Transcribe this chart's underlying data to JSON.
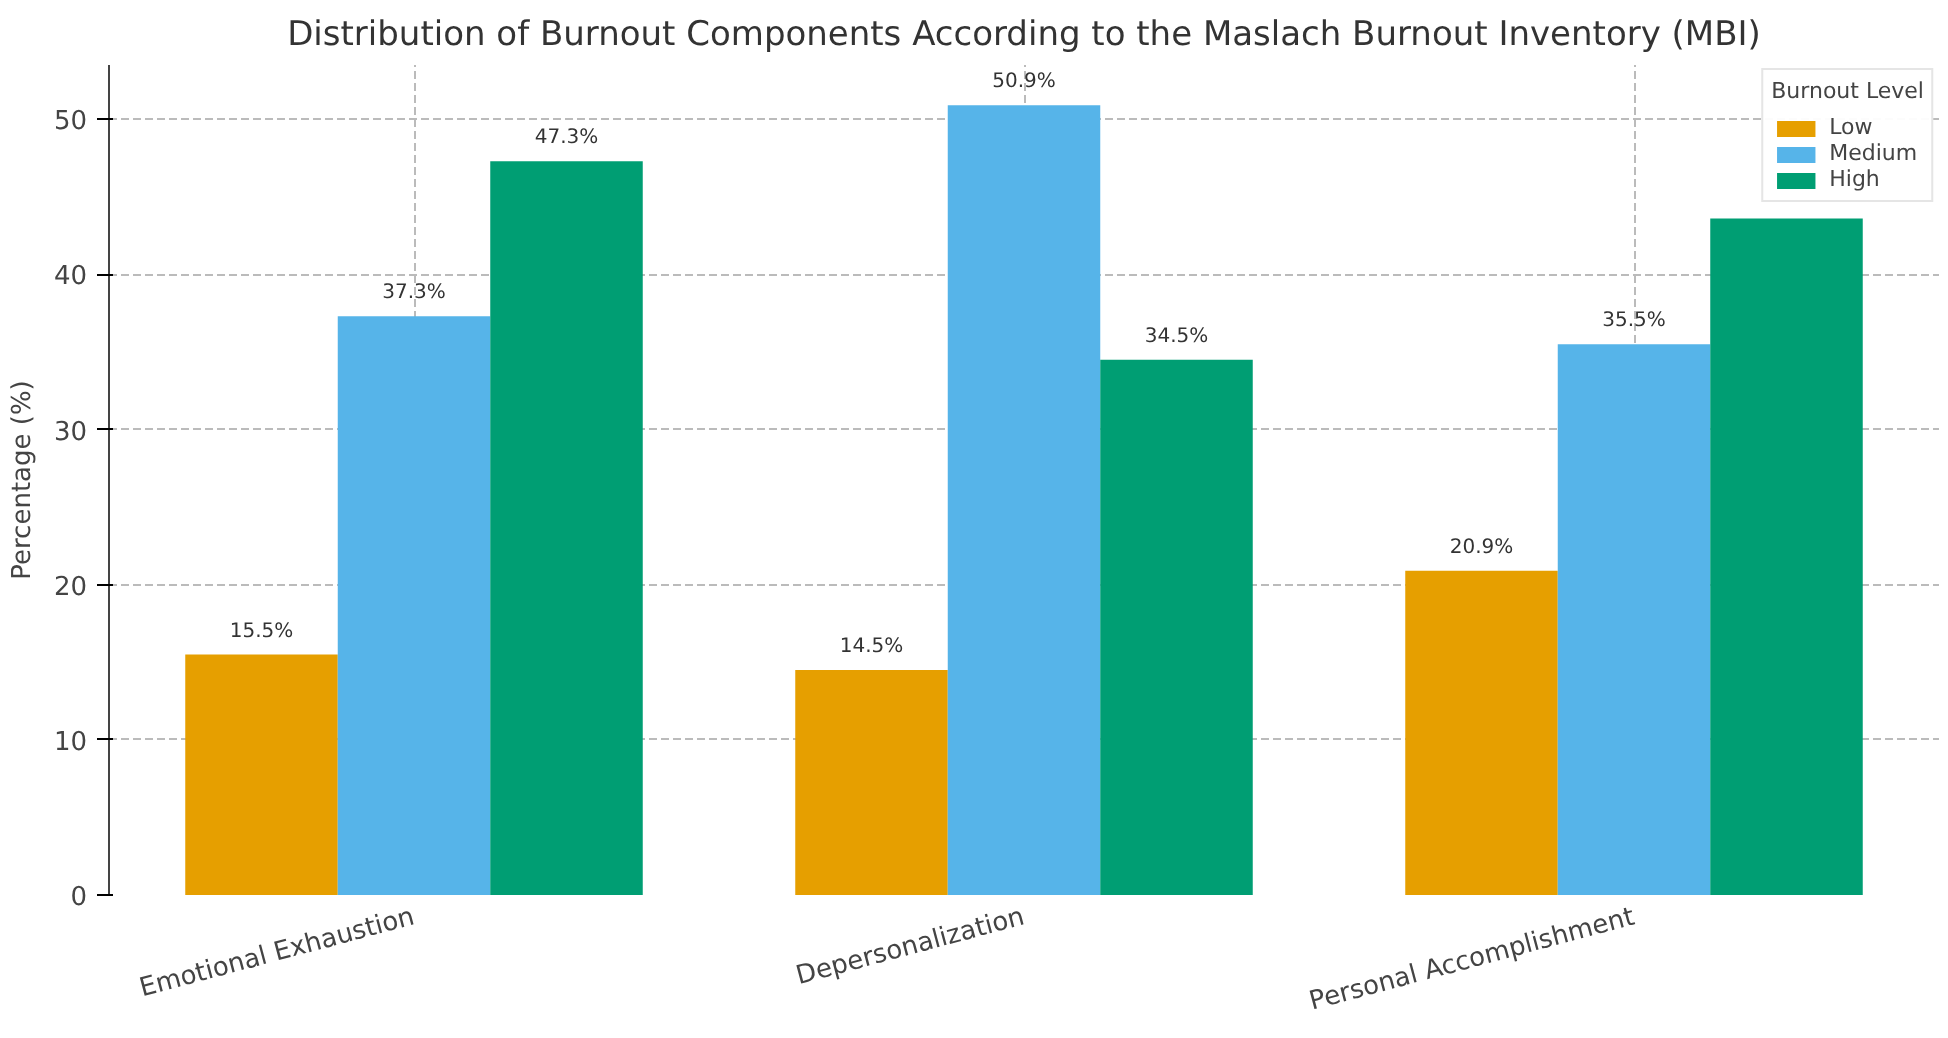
{
  "chart_data": {
    "type": "bar",
    "title": "Distribution of Burnout Components According to the Maslach Burnout Inventory (MBI)",
    "ylabel": "Percentage (%)",
    "legend_title": "Burnout Level",
    "categories": [
      "Emotional Exhaustion",
      "Depersonalization",
      "Personal Accomplishment"
    ],
    "series": [
      {
        "name": "Low",
        "color": "#e69f00",
        "values": [
          15.5,
          14.5,
          20.9
        ],
        "value_labels": [
          "15.5%",
          "14.5%",
          "20.9%"
        ]
      },
      {
        "name": "Medium",
        "color": "#56b4e9",
        "values": [
          37.3,
          50.9,
          35.5
        ],
        "value_labels": [
          "37.3%",
          "50.9%",
          "35.5%"
        ]
      },
      {
        "name": "High",
        "color": "#009e73",
        "values": [
          47.3,
          34.5,
          43.6
        ],
        "value_labels": [
          "47.3%",
          "34.5%",
          null
        ]
      }
    ],
    "ylim": [
      0,
      53.5
    ],
    "yticks": [
      0,
      10,
      20,
      30,
      40,
      50
    ],
    "grid": true,
    "legend": "top right"
  }
}
